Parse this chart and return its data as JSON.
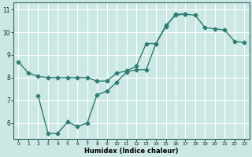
{
  "line1_x": [
    0,
    1,
    2,
    3,
    4,
    5,
    6,
    7,
    8,
    9,
    10,
    11,
    12,
    13,
    14,
    15,
    16,
    17,
    18,
    19,
    20,
    21,
    22,
    23
  ],
  "line1_y": [
    8.7,
    8.2,
    8.05,
    8.0,
    8.0,
    8.0,
    8.0,
    8.0,
    7.85,
    7.85,
    8.2,
    8.3,
    8.5,
    9.5,
    9.5,
    10.3,
    10.75,
    10.8,
    10.75,
    10.2,
    10.15,
    10.1,
    9.6,
    9.55
  ],
  "line2_x": [
    2,
    3,
    4,
    5,
    6,
    7,
    8,
    9,
    10,
    11,
    12,
    13,
    14,
    15,
    16,
    17
  ],
  "line2_y": [
    7.2,
    5.55,
    5.55,
    6.05,
    5.85,
    6.0,
    7.25,
    7.4,
    7.8,
    8.25,
    8.35,
    8.35,
    9.5,
    10.25,
    10.8,
    10.8
  ],
  "line_color": "#2e7d73",
  "bg_color": "#cce8e5",
  "grid_color": "#ffffff",
  "xlabel": "Humidex (Indice chaleur)",
  "xlim": [
    -0.5,
    23.5
  ],
  "ylim": [
    5.3,
    11.3
  ],
  "yticks": [
    6,
    7,
    8,
    9,
    10,
    11
  ],
  "xticks": [
    0,
    1,
    2,
    3,
    4,
    5,
    6,
    7,
    8,
    9,
    10,
    11,
    12,
    13,
    14,
    15,
    16,
    17,
    18,
    19,
    20,
    21,
    22,
    23
  ],
  "marker": "D",
  "markersize": 2.5,
  "linewidth": 1.0
}
